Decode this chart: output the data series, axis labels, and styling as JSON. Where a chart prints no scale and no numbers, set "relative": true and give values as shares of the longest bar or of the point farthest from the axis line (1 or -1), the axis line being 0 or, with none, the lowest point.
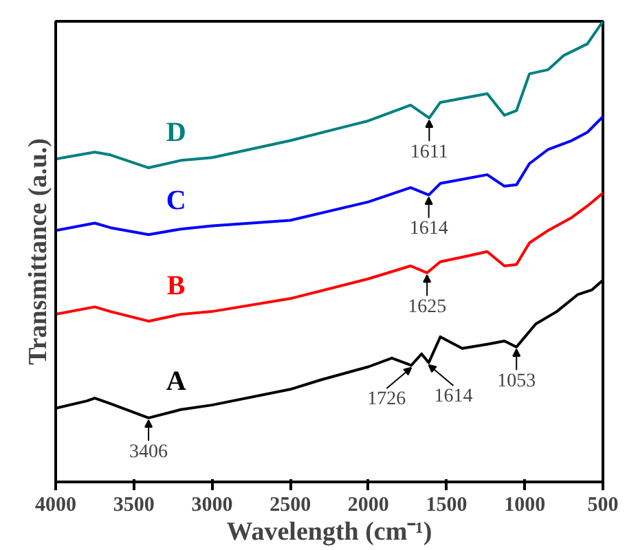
{
  "chart_data": {
    "type": "line",
    "xlabel": "Wavelength (cm⁻¹)",
    "ylabel": "Transmittance (a.u.)",
    "relative": true,
    "tick_labels": "x",
    "grid": false,
    "marker": "none",
    "line_style": "solid",
    "xlim": [
      4000,
      500
    ],
    "xticks": [
      4000,
      3500,
      3000,
      2500,
      2000,
      1500,
      1000,
      500
    ],
    "series": [
      {
        "name": "A",
        "color": "#000000",
        "x": [
          4000,
          3800,
          3750,
          3650,
          3406,
          3200,
          3000,
          2500,
          2300,
          2000,
          1850,
          1726,
          1660,
          1614,
          1540,
          1400,
          1240,
          1130,
          1053,
          930,
          795,
          660,
          570,
          500
        ],
        "values": [
          0.16,
          0.176,
          0.182,
          0.17,
          0.139,
          0.157,
          0.167,
          0.201,
          0.222,
          0.25,
          0.269,
          0.253,
          0.278,
          0.259,
          0.315,
          0.29,
          0.299,
          0.306,
          0.293,
          0.343,
          0.37,
          0.407,
          0.417,
          0.438
        ]
      },
      {
        "name": "B",
        "color": "#ff0000",
        "x": [
          4000,
          3750,
          3650,
          3406,
          3200,
          3000,
          2500,
          2000,
          1730,
          1625,
          1540,
          1400,
          1240,
          1130,
          1053,
          970,
          850,
          700,
          600,
          500
        ],
        "values": [
          0.364,
          0.38,
          0.37,
          0.349,
          0.364,
          0.37,
          0.398,
          0.441,
          0.469,
          0.454,
          0.478,
          0.488,
          0.5,
          0.469,
          0.472,
          0.519,
          0.546,
          0.574,
          0.599,
          0.627
        ]
      },
      {
        "name": "C",
        "color": "#0000ff",
        "x": [
          4000,
          3750,
          3650,
          3406,
          3200,
          3000,
          2500,
          2000,
          1730,
          1614,
          1540,
          1240,
          1130,
          1053,
          970,
          850,
          700,
          600,
          500
        ],
        "values": [
          0.546,
          0.562,
          0.552,
          0.537,
          0.549,
          0.556,
          0.568,
          0.608,
          0.639,
          0.623,
          0.648,
          0.667,
          0.642,
          0.645,
          0.691,
          0.722,
          0.741,
          0.759,
          0.793
        ]
      },
      {
        "name": "D",
        "color": "#008080",
        "x": [
          4000,
          3750,
          3650,
          3406,
          3200,
          3000,
          2500,
          2000,
          1730,
          1611,
          1540,
          1240,
          1130,
          1053,
          970,
          850,
          750,
          600,
          500
        ],
        "values": [
          0.701,
          0.716,
          0.71,
          0.682,
          0.698,
          0.704,
          0.741,
          0.784,
          0.818,
          0.79,
          0.824,
          0.843,
          0.796,
          0.806,
          0.886,
          0.895,
          0.926,
          0.951,
          1.0
        ]
      }
    ],
    "annotations": [
      {
        "text": "3406",
        "x": 3406,
        "y": 0.139
      },
      {
        "text": "1726",
        "x": 1726,
        "y": 0.253
      },
      {
        "text": "1614",
        "x": 1614,
        "y": 0.259
      },
      {
        "text": "1053",
        "x": 1053,
        "y": 0.293
      },
      {
        "text": "1625",
        "x": 1625,
        "y": 0.454
      },
      {
        "text": "1614",
        "x": 1614,
        "y": 0.623
      },
      {
        "text": "1611",
        "x": 1611,
        "y": 0.79
      }
    ]
  }
}
